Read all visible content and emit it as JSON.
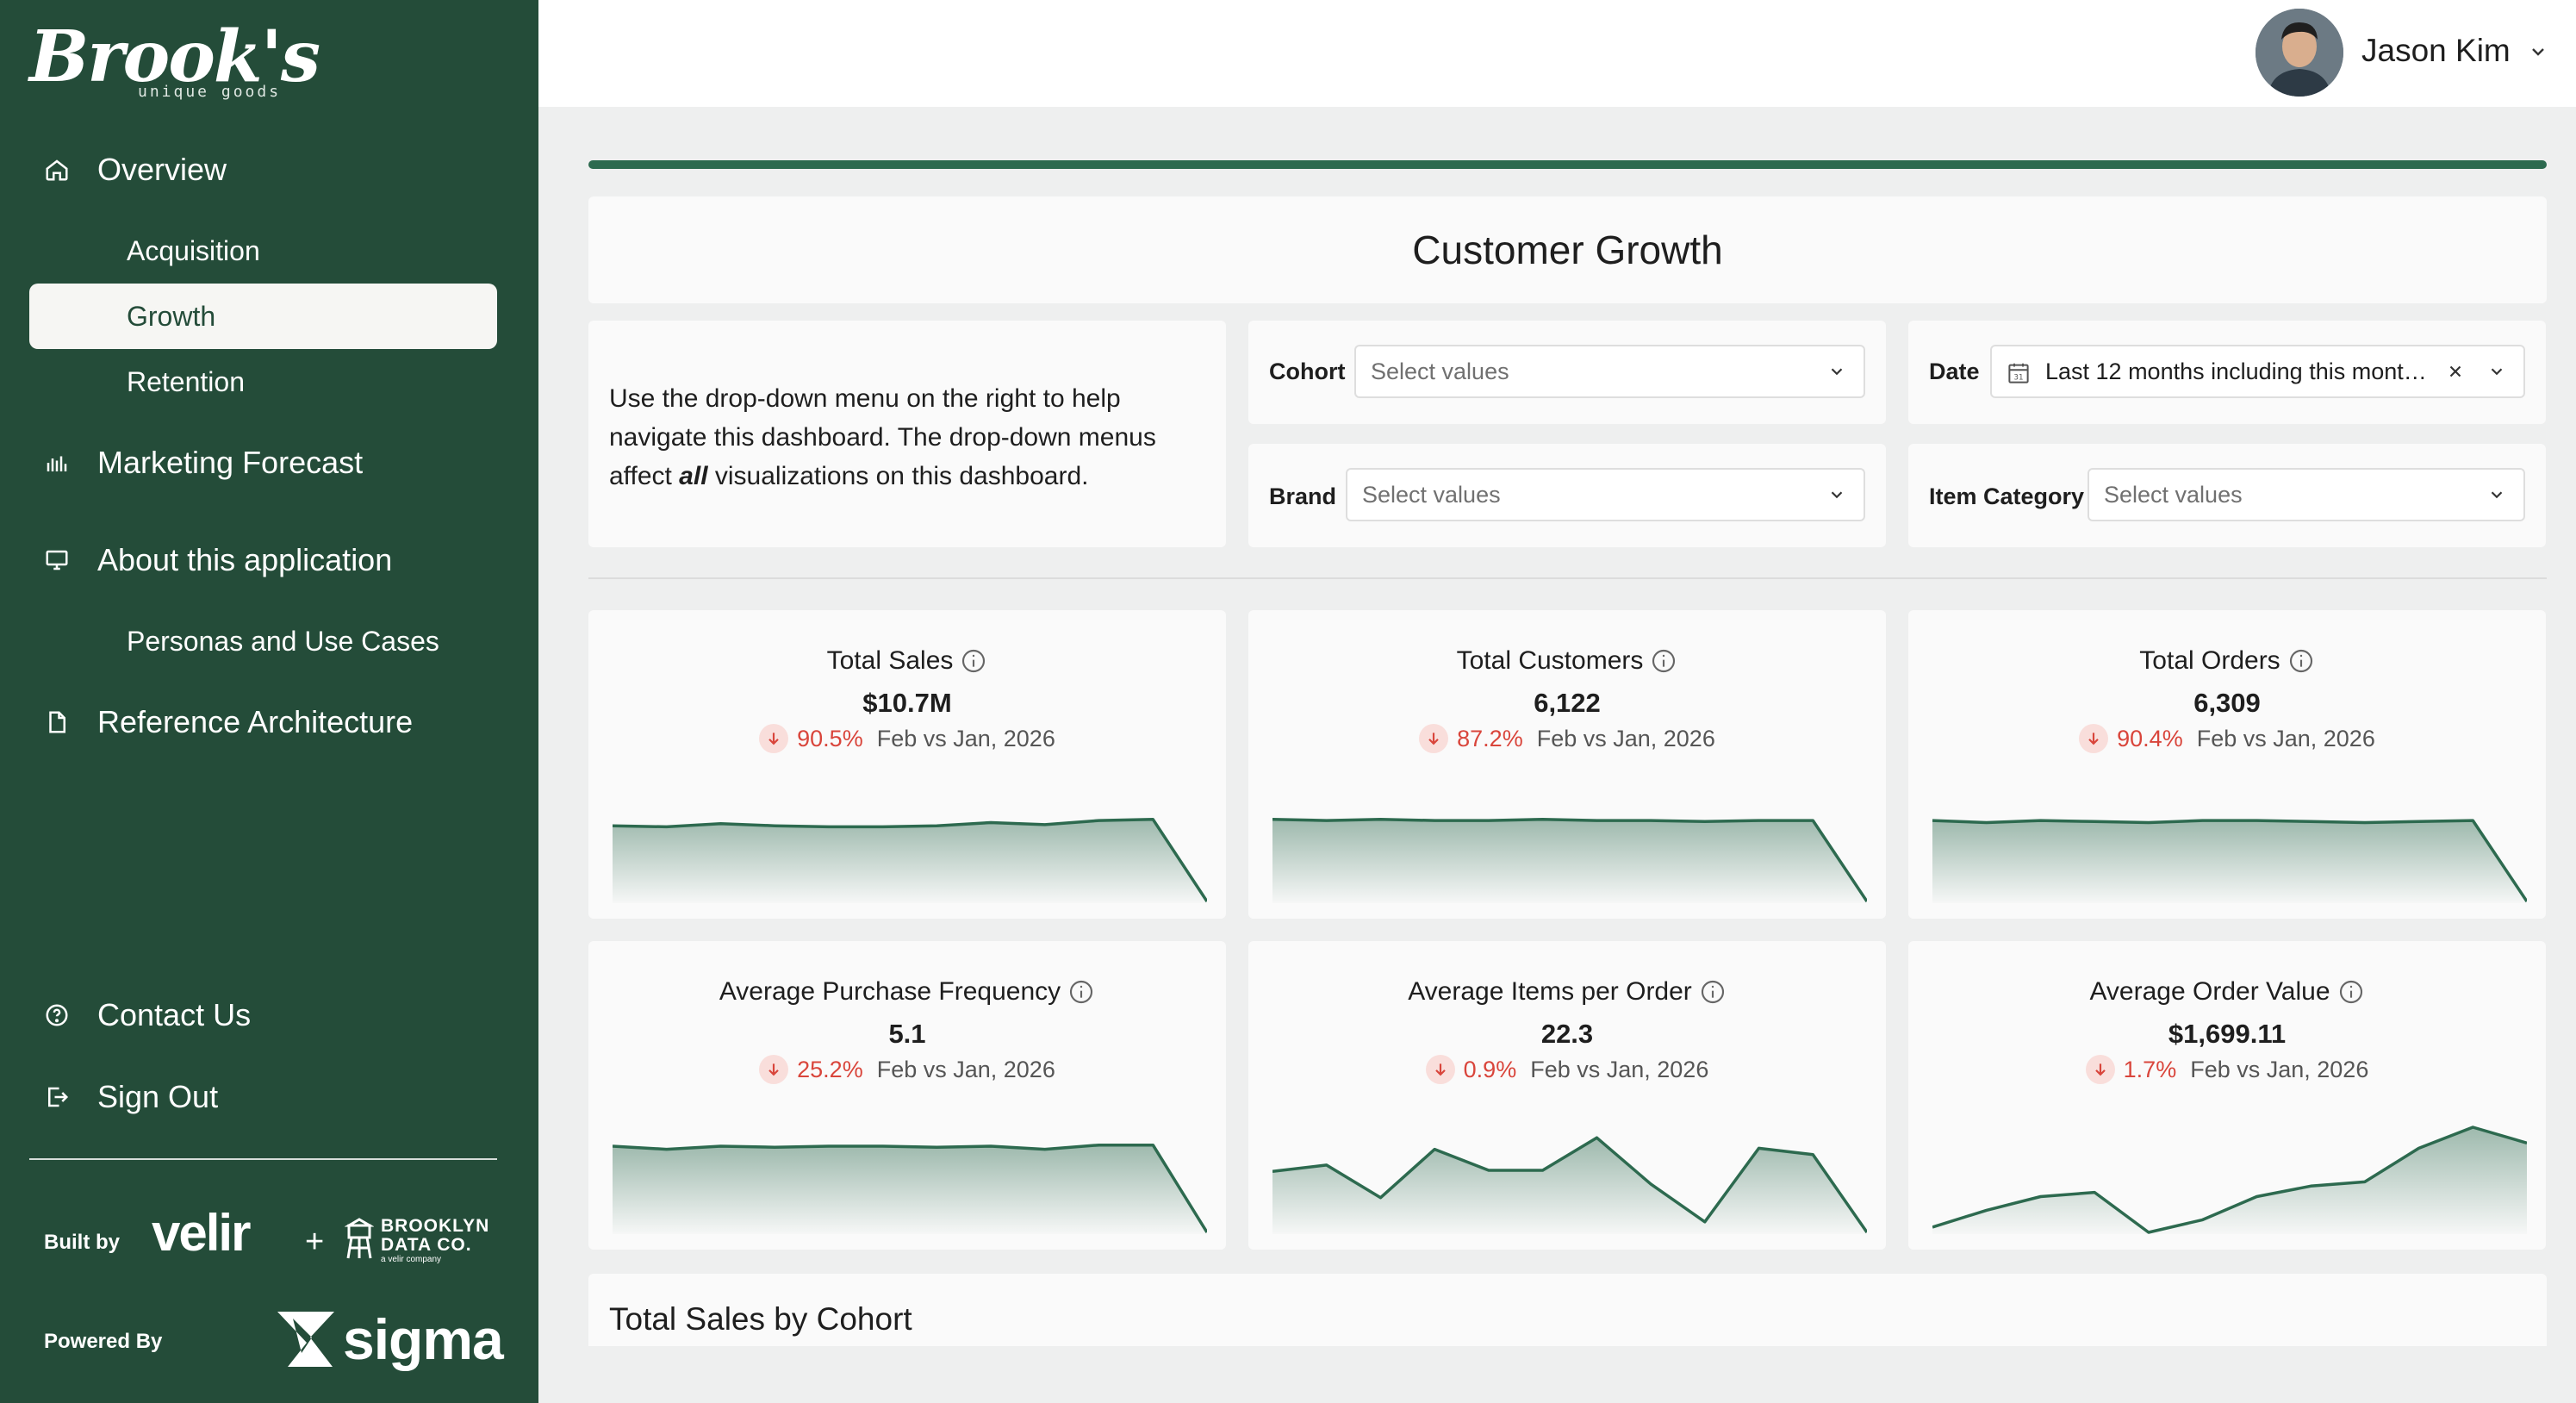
{
  "brand": {
    "logo_text": "Brook's",
    "logo_tagline": "unique goods"
  },
  "sidebar": {
    "nav": [
      {
        "label": "Overview",
        "icon": "home-icon"
      },
      {
        "label": "Acquisition"
      },
      {
        "label": "Growth",
        "active": true
      },
      {
        "label": "Retention"
      },
      {
        "label": "Marketing Forecast",
        "icon": "bar-chart-icon"
      },
      {
        "label": "About this application",
        "icon": "monitor-icon"
      },
      {
        "label": "Personas and Use Cases"
      },
      {
        "label": "Reference Architecture",
        "icon": "document-icon"
      }
    ],
    "footer_nav": [
      {
        "label": "Contact Us",
        "icon": "help-circle-icon"
      },
      {
        "label": "Sign Out",
        "icon": "sign-out-icon"
      }
    ],
    "built_by_label": "Built by",
    "velir_logo": "velir",
    "plus": "+",
    "bdc_line1": "BROOKLYN",
    "bdc_line2": "DATA CO.",
    "bdc_tagline": "a velir company",
    "powered_by_label": "Powered By",
    "sigma_logo": "sigma"
  },
  "header": {
    "user_name": "Jason Kim"
  },
  "page": {
    "title": "Customer Growth",
    "intro_part1": "Use the drop-down menu on the right to help navigate this dashboard. The drop-down menus affect ",
    "intro_emphasis": "all",
    "intro_part2": " visualizations on this dashboard."
  },
  "filters": {
    "cohort": {
      "label": "Cohort",
      "placeholder": "Select values"
    },
    "date": {
      "label": "Date",
      "value": "Last 12 months including this mont…"
    },
    "brand": {
      "label": "Brand",
      "placeholder": "Select values"
    },
    "item_category": {
      "label": "Item Category",
      "placeholder": "Select values"
    }
  },
  "kpis": [
    {
      "title": "Total Sales",
      "value": "$10.7M",
      "delta": "90.5%",
      "period": "Feb vs Jan, 2026",
      "spark": [
        0.72,
        0.71,
        0.74,
        0.72,
        0.71,
        0.71,
        0.72,
        0.75,
        0.73,
        0.77,
        0.78,
        0.0
      ]
    },
    {
      "title": "Total Customers",
      "value": "6,122",
      "delta": "87.2%",
      "period": "Feb vs Jan, 2026",
      "spark": [
        0.78,
        0.77,
        0.78,
        0.77,
        0.77,
        0.78,
        0.77,
        0.77,
        0.76,
        0.77,
        0.77,
        0.0
      ]
    },
    {
      "title": "Total Orders",
      "value": "6,309",
      "delta": "90.4%",
      "period": "Feb vs Jan, 2026",
      "spark": [
        0.77,
        0.75,
        0.77,
        0.76,
        0.75,
        0.77,
        0.77,
        0.76,
        0.75,
        0.76,
        0.77,
        0.0
      ]
    },
    {
      "title": "Average Purchase Frequency",
      "value": "5.1",
      "delta": "25.2%",
      "period": "Feb vs Jan, 2026",
      "spark": [
        0.82,
        0.79,
        0.82,
        0.81,
        0.82,
        0.82,
        0.81,
        0.82,
        0.79,
        0.83,
        0.83,
        0.0
      ]
    },
    {
      "title": "Average Items per Order",
      "value": "22.3",
      "delta": "0.9%",
      "period": "Feb vs Jan, 2026",
      "spark": [
        0.58,
        0.64,
        0.33,
        0.79,
        0.59,
        0.59,
        0.9,
        0.46,
        0.1,
        0.8,
        0.74,
        0.0
      ]
    },
    {
      "title": "Average Order Value",
      "value": "$1,699.11",
      "delta": "1.7%",
      "period": "Feb vs Jan, 2026",
      "spark": [
        0.05,
        0.21,
        0.34,
        0.38,
        0.0,
        0.12,
        0.34,
        0.44,
        0.48,
        0.8,
        1.0,
        0.85
      ]
    }
  ],
  "cohort_section": {
    "title": "Total Sales by Cohort"
  },
  "colors": {
    "sidebar": "#244c39",
    "accent": "#2d6a4f",
    "negative": "#d9453b"
  }
}
